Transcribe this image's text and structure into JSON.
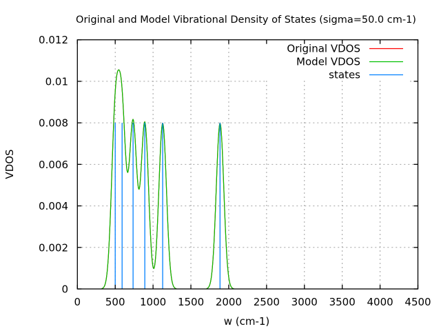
{
  "chart_data": {
    "type": "line",
    "title": "Original and Model Vibrational Density of States (sigma=50.0 cm-1)",
    "xlabel": "w (cm-1)",
    "ylabel": "VDOS",
    "xlim": [
      0,
      4500
    ],
    "ylim": [
      0,
      0.012
    ],
    "xticks": [
      0,
      500,
      1000,
      1500,
      2000,
      2500,
      3000,
      3500,
      4000,
      4500
    ],
    "xtick_labels": [
      "0",
      "500",
      "1000",
      "1500",
      "2000",
      "2500",
      "3000",
      "3500",
      "4000",
      "4500"
    ],
    "yticks": [
      0,
      0.002,
      0.004,
      0.006,
      0.008,
      0.01,
      0.012
    ],
    "ytick_labels": [
      "0",
      "0.002",
      "0.004",
      "0.006",
      "0.008",
      "0.01",
      "0.012"
    ],
    "grid": true,
    "legend_position": "top-right",
    "sigma": 50.0,
    "states": [
      500,
      591,
      736,
      891,
      1127,
      1885
    ],
    "state_height": 0.008,
    "series": [
      {
        "name": "Original VDOS",
        "color": "#ff0000",
        "kind": "gaussian-sum",
        "description_points": {
          "x": [
            335,
            543,
            661,
            731,
            806,
            888,
            1009,
            1122,
            1265,
            1885,
            2050
          ],
          "y": [
            0,
            0.01054,
            0.00575,
            0.00816,
            0.00489,
            0.00807,
            0.001,
            0.008,
            0,
            0.00796,
            0
          ]
        }
      },
      {
        "name": "Model VDOS",
        "color": "#00c000",
        "kind": "gaussian-sum",
        "description_points": {
          "x": [
            335,
            543,
            661,
            731,
            806,
            888,
            1009,
            1122,
            1265,
            1885,
            2050
          ],
          "y": [
            0,
            0.01054,
            0.00575,
            0.00816,
            0.00489,
            0.00807,
            0.001,
            0.008,
            0,
            0.00796,
            0
          ]
        }
      },
      {
        "name": "states",
        "color": "#0080ff",
        "kind": "impulses",
        "x": [
          500,
          591,
          736,
          891,
          1127,
          1885
        ],
        "y": [
          0.008,
          0.008,
          0.008,
          0.008,
          0.008,
          0.008
        ]
      }
    ]
  }
}
